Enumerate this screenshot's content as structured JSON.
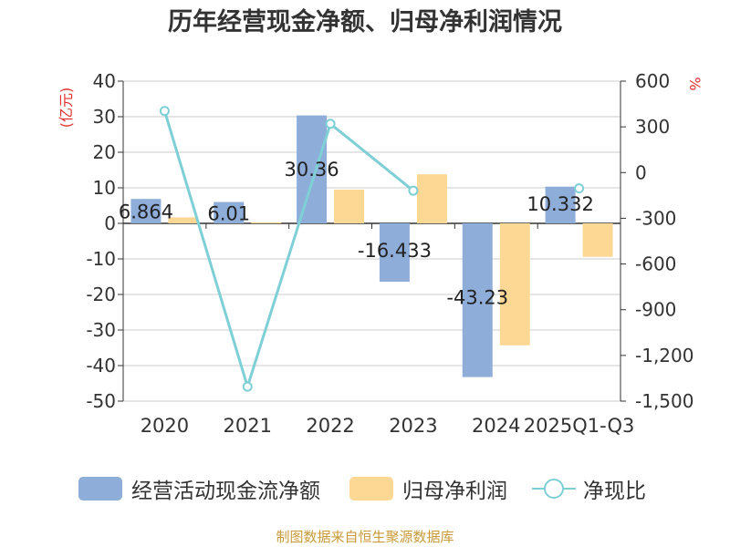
{
  "chart_data": {
    "type": "bar",
    "title": "历年经营现金净额、归母净利润情况",
    "categories": [
      "2020",
      "2021",
      "2022",
      "2023",
      "2024",
      "2025Q1-Q3"
    ],
    "series": [
      {
        "name": "经营活动现金流净额",
        "type": "bar",
        "axis": "left",
        "color": "#8eadd9",
        "values": [
          6.864,
          6.01,
          30.36,
          -16.433,
          -43.23,
          10.332
        ],
        "labels": [
          "6.864",
          "6.01",
          "30.36",
          "-16.433",
          "-43.23",
          "10.332"
        ]
      },
      {
        "name": "归母净利润",
        "type": "bar",
        "axis": "left",
        "color": "#fdd794",
        "values": [
          1.7,
          0.3,
          9.5,
          13.8,
          -34.3,
          -9.4
        ]
      },
      {
        "name": "净现比",
        "type": "line",
        "axis": "right",
        "color": "#7ecfd6",
        "values": [
          404,
          -1405,
          320,
          -119,
          null,
          -104
        ]
      }
    ],
    "left_axis": {
      "label": "(亿元)",
      "min": -50,
      "max": 40,
      "ticks": [
        "40",
        "30",
        "20",
        "10",
        "0",
        "-10",
        "-20",
        "-30",
        "-40",
        "-50"
      ]
    },
    "right_axis": {
      "label": "%",
      "min": -1500,
      "max": 600,
      "ticks": [
        "600",
        "300",
        "0",
        "-300",
        "-600",
        "-900",
        "-1,200",
        "-1,500"
      ]
    },
    "legend_position": "bottom",
    "grid": true
  },
  "legend": {
    "items": [
      "经营活动现金流净额",
      "归母净利润",
      "净现比"
    ]
  },
  "source": "制图数据来自恒生聚源数据库"
}
